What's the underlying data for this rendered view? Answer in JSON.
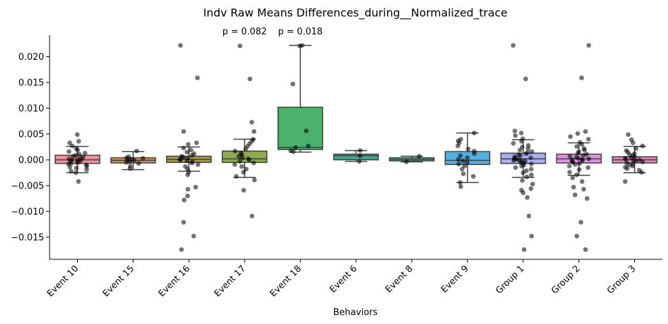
{
  "chart_data": {
    "type": "box",
    "title": "Indv Raw Means Differences_during__Normalized_trace",
    "xlabel": "Behaviors",
    "ylabel": "",
    "ylim": [
      -0.0193,
      0.0242
    ],
    "yticks": [
      -0.015,
      -0.01,
      -0.005,
      0.0,
      0.005,
      0.01,
      0.015,
      0.02
    ],
    "ytick_labels": [
      "−0.015",
      "−0.010",
      "−0.005",
      "0.000",
      "0.005",
      "0.010",
      "0.015",
      "0.020"
    ],
    "grid": false,
    "point_color": "#000000",
    "categories": [
      "Event 10",
      "Event 15",
      "Event 16",
      "Event 17",
      "Event 18",
      "Event 6",
      "Event 8",
      "Event 9",
      "Group 1",
      "Group 2",
      "Group 3"
    ],
    "colors": [
      "#e9969b",
      "#d88f4a",
      "#a39a43",
      "#8dab4b",
      "#4ab26a",
      "#4e9f8c",
      "#4ea3a0",
      "#55aee0",
      "#a9b0ef",
      "#e18ee3",
      "#e587b8"
    ],
    "boxes": [
      {
        "category": "Event 10",
        "q1": -0.0007,
        "median": 0.0,
        "q3": 0.0009,
        "whisker_low": -0.0025,
        "whisker_high": 0.0026,
        "points": [
          0.0049,
          0.0036,
          0.0033,
          0.0027,
          0.0022,
          0.0019,
          0.0016,
          0.0013,
          0.0011,
          0.0009,
          0.0007,
          0.0005,
          0.0003,
          0.0002,
          0.0001,
          0.0,
          -0.0001,
          -0.0002,
          -0.0004,
          -0.0005,
          -0.0007,
          -0.0008,
          -0.001,
          -0.0012,
          -0.0014,
          -0.0016,
          -0.0019,
          -0.0022,
          -0.0025,
          -0.0042
        ]
      },
      {
        "category": "Event 15",
        "q1": -0.0006,
        "median": -0.0001,
        "q3": 0.0004,
        "whisker_low": -0.0019,
        "whisker_high": 0.0016,
        "points": [
          0.0017,
          0.0006,
          0.0004,
          0.0003,
          0.0001,
          0.0,
          -0.0001,
          -0.0003,
          -0.0005,
          -0.0007,
          -0.0012,
          -0.0017
        ]
      },
      {
        "category": "Event 16",
        "q1": -0.0005,
        "median": 0.0001,
        "q3": 0.0007,
        "whisker_low": -0.0022,
        "whisker_high": 0.0025,
        "points": [
          0.0222,
          0.0159,
          0.0055,
          0.0033,
          0.003,
          0.0023,
          0.0019,
          0.0015,
          0.0012,
          0.0009,
          0.0007,
          0.0005,
          0.0003,
          0.0001,
          0.0,
          -0.0002,
          -0.0004,
          -0.0006,
          -0.0009,
          -0.0013,
          -0.0018,
          -0.0024,
          -0.0029,
          -0.0053,
          -0.0057,
          -0.007,
          -0.0078,
          -0.0121,
          -0.0148,
          -0.0174
        ]
      },
      {
        "category": "Event 17",
        "q1": -0.0005,
        "median": 0.0002,
        "q3": 0.0017,
        "whisker_low": -0.0034,
        "whisker_high": 0.004,
        "points": [
          0.0221,
          0.0157,
          0.0073,
          0.0055,
          0.004,
          0.0036,
          0.0031,
          0.0026,
          0.0021,
          0.0017,
          0.0013,
          0.001,
          0.0007,
          0.0004,
          0.0002,
          0.0,
          -0.0003,
          -0.0006,
          -0.0009,
          -0.0013,
          -0.0018,
          -0.0024,
          -0.0032,
          -0.0039,
          -0.0059,
          -0.0109
        ]
      },
      {
        "category": "Event 18",
        "q1": 0.002,
        "median": 0.0024,
        "q3": 0.0102,
        "whisker_low": 0.0015,
        "whisker_high": 0.0222,
        "points": [
          0.0222,
          0.0221,
          0.0147,
          0.0056,
          0.0027,
          0.0024,
          0.0018,
          0.0016
        ]
      },
      {
        "category": "Event 6",
        "q1": 0.0,
        "median": 0.0008,
        "q3": 0.0011,
        "whisker_low": -0.0003,
        "whisker_high": 0.0018,
        "points": [
          0.0018,
          0.0008,
          -0.0003
        ]
      },
      {
        "category": "Event 8",
        "q1": -0.0002,
        "median": 0.0001,
        "q3": 0.0004,
        "whisker_low": -0.0004,
        "whisker_high": 0.0007,
        "points": [
          0.0007,
          -0.0004
        ]
      },
      {
        "category": "Event 9",
        "q1": -0.0009,
        "median": -0.0001,
        "q3": 0.0016,
        "whisker_low": -0.0044,
        "whisker_high": 0.0052,
        "points": [
          0.0052,
          0.004,
          0.0037,
          0.0033,
          0.0027,
          0.0021,
          0.0017,
          0.0012,
          0.0008,
          0.0004,
          0.0001,
          -0.0002,
          -0.0005,
          -0.0008,
          -0.0012,
          -0.0018,
          -0.0027,
          -0.0032,
          -0.0044,
          -0.0052
        ]
      },
      {
        "category": "Group 1",
        "q1": -0.0007,
        "median": 0.0002,
        "q3": 0.0013,
        "whisker_low": -0.0034,
        "whisker_high": 0.0039,
        "points": [
          0.0222,
          0.0157,
          0.0056,
          0.0052,
          0.0047,
          0.0041,
          0.0036,
          0.0032,
          0.0028,
          0.0025,
          0.0022,
          0.0019,
          0.0016,
          0.0014,
          0.0012,
          0.001,
          0.0008,
          0.0006,
          0.0004,
          0.0003,
          0.0002,
          0.0001,
          0.0,
          -0.0001,
          -0.0002,
          -0.0003,
          -0.0005,
          -0.0006,
          -0.0008,
          -0.001,
          -0.0012,
          -0.0015,
          -0.0018,
          -0.0021,
          -0.0025,
          -0.0029,
          -0.0033,
          -0.004,
          -0.0047,
          -0.0056,
          -0.0059,
          -0.0064,
          -0.0073,
          -0.0109,
          -0.0148,
          -0.0174
        ]
      },
      {
        "category": "Group 2",
        "q1": -0.0006,
        "median": 0.0002,
        "q3": 0.0011,
        "whisker_low": -0.003,
        "whisker_high": 0.0033,
        "points": [
          0.0222,
          0.0159,
          0.0055,
          0.0051,
          0.0045,
          0.004,
          0.0034,
          0.003,
          0.0026,
          0.0022,
          0.0019,
          0.0016,
          0.0013,
          0.0011,
          0.0009,
          0.0007,
          0.0005,
          0.0003,
          0.0002,
          0.0001,
          0.0,
          -0.0001,
          -0.0003,
          -0.0005,
          -0.0007,
          -0.0009,
          -0.0012,
          -0.0015,
          -0.0019,
          -0.0024,
          -0.0029,
          -0.0035,
          -0.0042,
          -0.0053,
          -0.0057,
          -0.0068,
          -0.0075,
          -0.0121,
          -0.0148,
          -0.0174
        ]
      },
      {
        "category": "Group 3",
        "q1": -0.0006,
        "median": 0.0,
        "q3": 0.0006,
        "whisker_low": -0.0025,
        "whisker_high": 0.0026,
        "points": [
          0.0049,
          0.0039,
          0.0033,
          0.0027,
          0.0022,
          0.0018,
          0.0015,
          0.0012,
          0.001,
          0.0008,
          0.0006,
          0.0004,
          0.0003,
          0.0001,
          0.0,
          -0.0001,
          -0.0002,
          -0.0004,
          -0.0006,
          -0.0008,
          -0.001,
          -0.0012,
          -0.0014,
          -0.0017,
          -0.002,
          -0.0024,
          -0.0042
        ]
      }
    ],
    "annotations": [
      {
        "category": "Event 17",
        "text": "p = 0.082"
      },
      {
        "category": "Event 18",
        "text": "p = 0.018"
      }
    ]
  }
}
